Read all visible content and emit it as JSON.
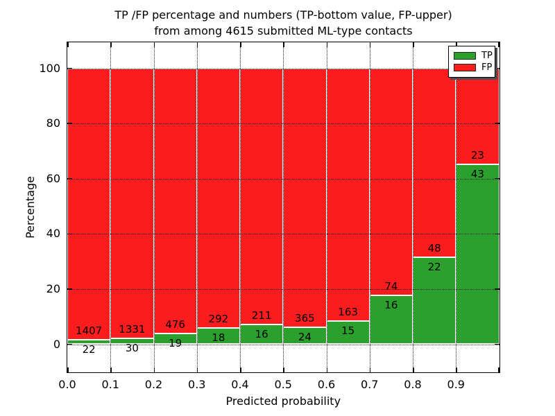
{
  "title": {
    "line1": "TP /FP percentage and numbers (TP-bottom value, FP-upper)",
    "line2": "from among 4615 submitted ML-type contacts"
  },
  "axes": {
    "x_label": "Predicted probability",
    "y_label": "Percentage",
    "x_tick_labels": [
      "0.0",
      "0.1",
      "0.2",
      "0.3",
      "0.4",
      "0.5",
      "0.6",
      "0.7",
      "0.8",
      "0.9"
    ],
    "y_tick_labels": [
      "0",
      "20",
      "40",
      "60",
      "80",
      "100"
    ],
    "y_tick_values": [
      0,
      20,
      40,
      60,
      80,
      100
    ]
  },
  "legend": {
    "items": [
      {
        "label": "TP",
        "color": "#2ca02c"
      },
      {
        "label": "FP",
        "color": "#fb1d1d"
      }
    ]
  },
  "chart_data": {
    "type": "bar",
    "stacked": true,
    "normalized_to_percent": true,
    "title": "TP /FP percentage and numbers (TP-bottom value, FP-upper) from among 4615 submitted ML-type contacts",
    "xlabel": "Predicted probability",
    "ylabel": "Percentage",
    "categories": [
      "0.0",
      "0.1",
      "0.2",
      "0.3",
      "0.4",
      "0.5",
      "0.6",
      "0.7",
      "0.8",
      "0.9"
    ],
    "bin_width": 0.1,
    "xlim": [
      0.0,
      1.0
    ],
    "ylim": [
      -10,
      110
    ],
    "grid": true,
    "legend_position": "upper right",
    "total_contacts": 4615,
    "series": [
      {
        "name": "TP",
        "color": "#2ca02c",
        "values": [
          22,
          30,
          19,
          18,
          16,
          24,
          15,
          16,
          22,
          43
        ]
      },
      {
        "name": "FP",
        "color": "#fb1d1d",
        "values": [
          1407,
          1331,
          476,
          292,
          211,
          365,
          163,
          74,
          48,
          23
        ]
      }
    ],
    "tp_percent_per_bin": [
      1.54,
      2.2,
      3.84,
      5.81,
      7.05,
      6.17,
      8.43,
      17.78,
      31.43,
      65.15
    ],
    "bar_edge_color": "#ffffff"
  }
}
